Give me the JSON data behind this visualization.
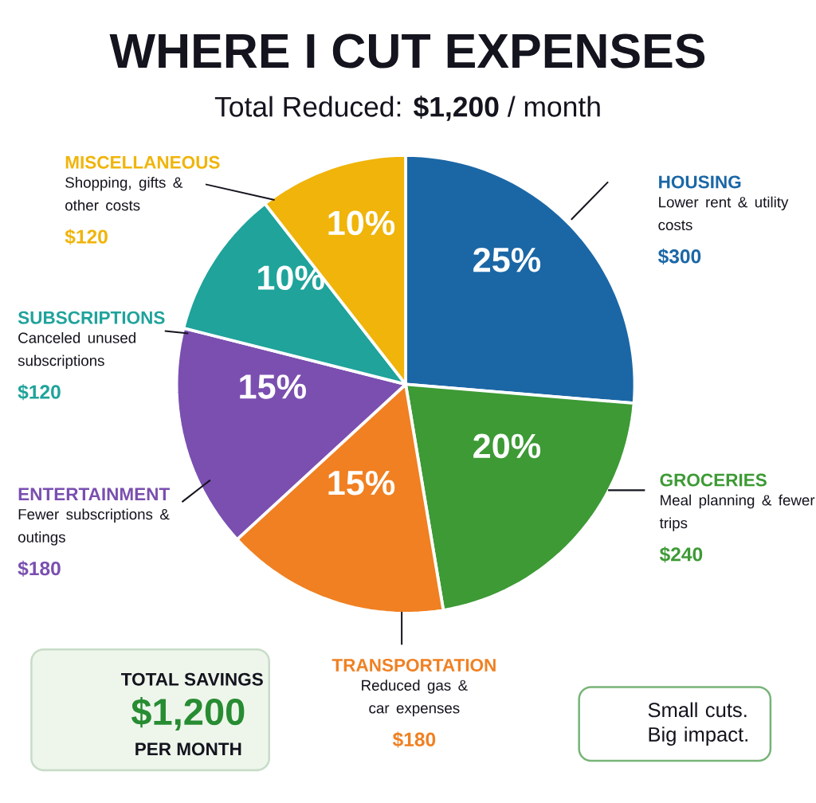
{
  "chart_data": {
    "type": "pie",
    "title": "WHERE I CUT EXPENSES",
    "subtitle": "Total Reduced: **$1,200** / month",
    "categories": [
      "HOUSING",
      "GROCERIES",
      "TRANSPORTATION",
      "ENTERTAINMENT",
      "SUBSCRIPTIONS",
      "MISCELLANEOUS"
    ],
    "values": [
      25,
      20,
      15,
      15,
      10,
      10
    ],
    "value_labels": [
      "25%",
      "20%",
      "15%",
      "15%",
      "10%",
      "10%"
    ],
    "colors": [
      "#1b67a6",
      "#3d9a35",
      "#f08022",
      "#7a4fb0",
      "#1fa39b",
      "#f0b40a"
    ],
    "annotations": [
      "Lower rent & utility costs",
      "$300",
      "Meal planning & fewer trips",
      "$240",
      "Reduced gas & car expenses",
      "$180",
      "Fewer subscriptions & outings",
      "$180",
      "Canceled unused subscriptions",
      "$120",
      "Shopping, gifts & other costs",
      "$120",
      "TOTAL SAVINGS",
      "$1,200",
      "PER MONTH",
      "Small cuts. Big impact."
    ]
  }
}
